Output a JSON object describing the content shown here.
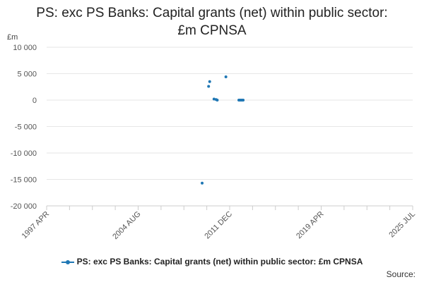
{
  "page": {
    "title_line1": "PS: exc PS Banks: Capital grants (net) within public sector:",
    "title_line2": "£m CPNSA",
    "unit_label": "£m",
    "legend_label": "PS: exc PS Banks: Capital grants (net) within public sector: £m CPNSA",
    "source_label": "Source:"
  },
  "chart_data": {
    "type": "scatter",
    "title": "PS: exc PS Banks: Capital grants (net) within public sector: £m CPNSA",
    "ylabel": "£m",
    "xlabel": "",
    "x_ticks": [
      "1997 APR",
      "2004 AUG",
      "2011 DEC",
      "2019 APR",
      "2025 JUL"
    ],
    "y_ticks": [
      "10 000",
      "5 000",
      "0",
      "-5 000",
      "-10 000",
      "-15 000",
      "-20 000"
    ],
    "ylim": [
      -20000,
      10000
    ],
    "xlim": [
      "1997-04",
      "2025-07"
    ],
    "grid": "horizontal",
    "color": "#1f77b4",
    "series": [
      {
        "name": "PS: exc PS Banks: Capital grants (net) within public sector: £m CPNSA",
        "points": [
          {
            "x": "2009-04",
            "y": -15700
          },
          {
            "x": "2009-10",
            "y": 2600
          },
          {
            "x": "2009-11",
            "y": 3500
          },
          {
            "x": "2010-03",
            "y": 200
          },
          {
            "x": "2010-05",
            "y": 100
          },
          {
            "x": "2010-06",
            "y": 0
          },
          {
            "x": "2011-02",
            "y": 4400
          },
          {
            "x": "2012-02",
            "y": 0
          },
          {
            "x": "2012-03",
            "y": 0
          },
          {
            "x": "2012-04",
            "y": 0
          },
          {
            "x": "2012-05",
            "y": 0
          },
          {
            "x": "2012-06",
            "y": 0
          }
        ]
      }
    ]
  }
}
